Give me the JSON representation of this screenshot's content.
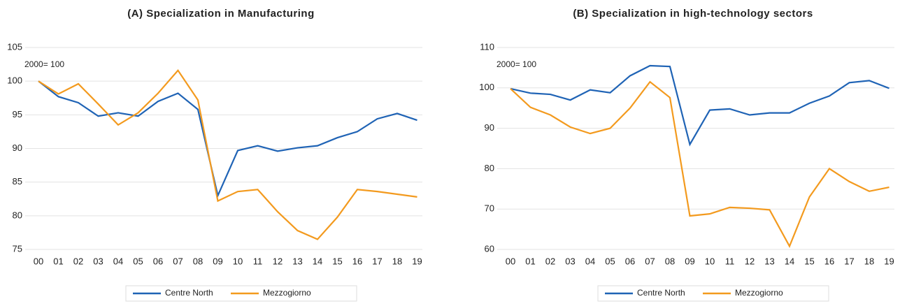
{
  "chart_data": [
    {
      "type": "line",
      "title": "(A) Specialization in Manufacturing",
      "annotation": "2000= 100",
      "categories": [
        "00",
        "01",
        "02",
        "03",
        "04",
        "05",
        "06",
        "07",
        "08",
        "09",
        "10",
        "11",
        "12",
        "13",
        "14",
        "15",
        "16",
        "17",
        "18",
        "19"
      ],
      "series": [
        {
          "name": "Centre North",
          "color": "#1f63b5",
          "values": [
            100,
            97.7,
            96.8,
            94.8,
            95.3,
            94.8,
            97,
            98.2,
            95.8,
            83,
            89.7,
            90.4,
            89.6,
            90.1,
            90.4,
            91.6,
            92.5,
            94.4,
            95.2,
            94.2
          ]
        },
        {
          "name": "Mezzogiorno",
          "color": "#f39a1e",
          "values": [
            100,
            98.1,
            99.6,
            96.6,
            93.5,
            95.3,
            98.2,
            101.6,
            97.2,
            82.2,
            83.6,
            83.9,
            80.6,
            77.8,
            76.5,
            79.8,
            83.9,
            83.6,
            83.2,
            82.8
          ]
        }
      ],
      "ylim": [
        75,
        105
      ],
      "yticks": [
        75,
        80,
        85,
        90,
        95,
        100,
        105
      ],
      "grid": true,
      "legend": "bottom"
    },
    {
      "type": "line",
      "title": "(B) Specialization in high-technology sectors",
      "annotation": "2000= 100",
      "categories": [
        "00",
        "01",
        "02",
        "03",
        "04",
        "05",
        "06",
        "07",
        "08",
        "09",
        "10",
        "11",
        "12",
        "13",
        "14",
        "15",
        "16",
        "17",
        "18",
        "19"
      ],
      "series": [
        {
          "name": "Centre North",
          "color": "#1f63b5",
          "values": [
            99.8,
            98.7,
            98.4,
            97,
            99.5,
            98.8,
            103,
            105.5,
            105.3,
            86,
            94.5,
            94.8,
            93.3,
            93.8,
            93.8,
            96.2,
            98,
            101.3,
            101.8,
            99.9
          ]
        },
        {
          "name": "Mezzogiorno",
          "color": "#f39a1e",
          "values": [
            99.8,
            95.2,
            93.3,
            90.3,
            88.7,
            90,
            95,
            101.5,
            97.6,
            68.3,
            68.8,
            70.4,
            70.2,
            69.8,
            60.8,
            73,
            80,
            76.8,
            74.4,
            75.4
          ]
        }
      ],
      "ylim": [
        60,
        110
      ],
      "yticks": [
        60,
        70,
        80,
        90,
        100,
        110
      ],
      "grid": true,
      "legend": "bottom"
    }
  ]
}
